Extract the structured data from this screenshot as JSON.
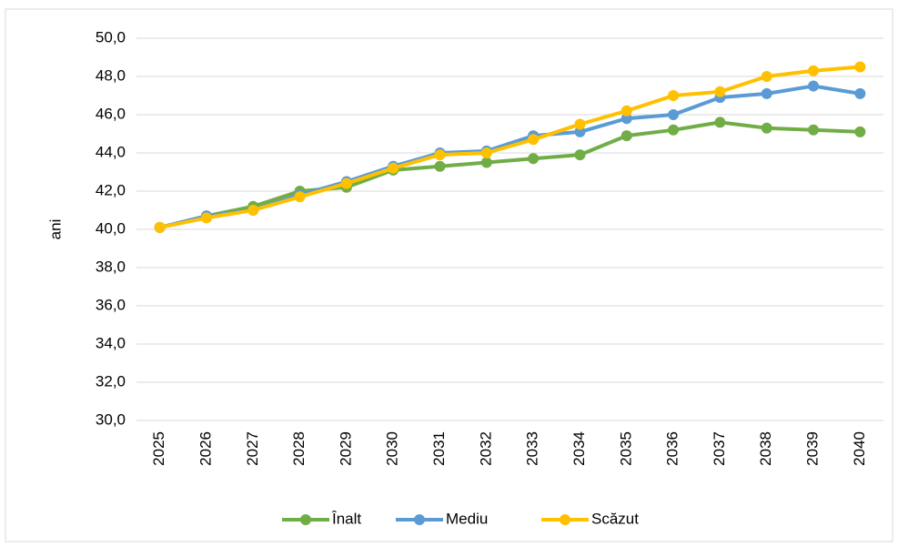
{
  "chart_data": {
    "type": "line",
    "y_label": "ani",
    "categories": [
      "2025",
      "2026",
      "2027",
      "2028",
      "2029",
      "2030",
      "2031",
      "2032",
      "2033",
      "2034",
      "2035",
      "2036",
      "2037",
      "2038",
      "2039",
      "2040"
    ],
    "series": [
      {
        "name": "Înalt",
        "color": "#70ad47",
        "values": [
          40.1,
          40.7,
          41.2,
          42.0,
          42.2,
          43.1,
          43.3,
          43.5,
          43.7,
          43.9,
          44.9,
          45.2,
          45.6,
          45.3,
          45.2,
          45.1
        ]
      },
      {
        "name": "Mediu",
        "color": "#5b9bd5",
        "values": [
          40.1,
          40.7,
          41.0,
          41.8,
          42.5,
          43.3,
          44.0,
          44.1,
          44.9,
          45.1,
          45.8,
          46.0,
          46.9,
          47.1,
          47.5,
          47.1
        ]
      },
      {
        "name": "Scăzut",
        "color": "#ffc000",
        "values": [
          40.1,
          40.6,
          41.0,
          41.7,
          42.4,
          43.2,
          43.9,
          44.0,
          44.7,
          45.5,
          46.2,
          47.0,
          47.2,
          48.0,
          48.3,
          48.5
        ]
      }
    ],
    "ylim": [
      30,
      50
    ],
    "yticks": [
      {
        "value": 30,
        "label": "30,0"
      },
      {
        "value": 32,
        "label": "32,0"
      },
      {
        "value": 34,
        "label": "34,0"
      },
      {
        "value": 36,
        "label": "36,0"
      },
      {
        "value": 38,
        "label": "38,0"
      },
      {
        "value": 40,
        "label": "40,0"
      },
      {
        "value": 42,
        "label": "42,0"
      },
      {
        "value": 44,
        "label": "44,0"
      },
      {
        "value": 46,
        "label": "46,0"
      },
      {
        "value": 48,
        "label": "48,0"
      },
      {
        "value": 50,
        "label": "50,0"
      }
    ],
    "grid": true,
    "legend": "bottom"
  }
}
